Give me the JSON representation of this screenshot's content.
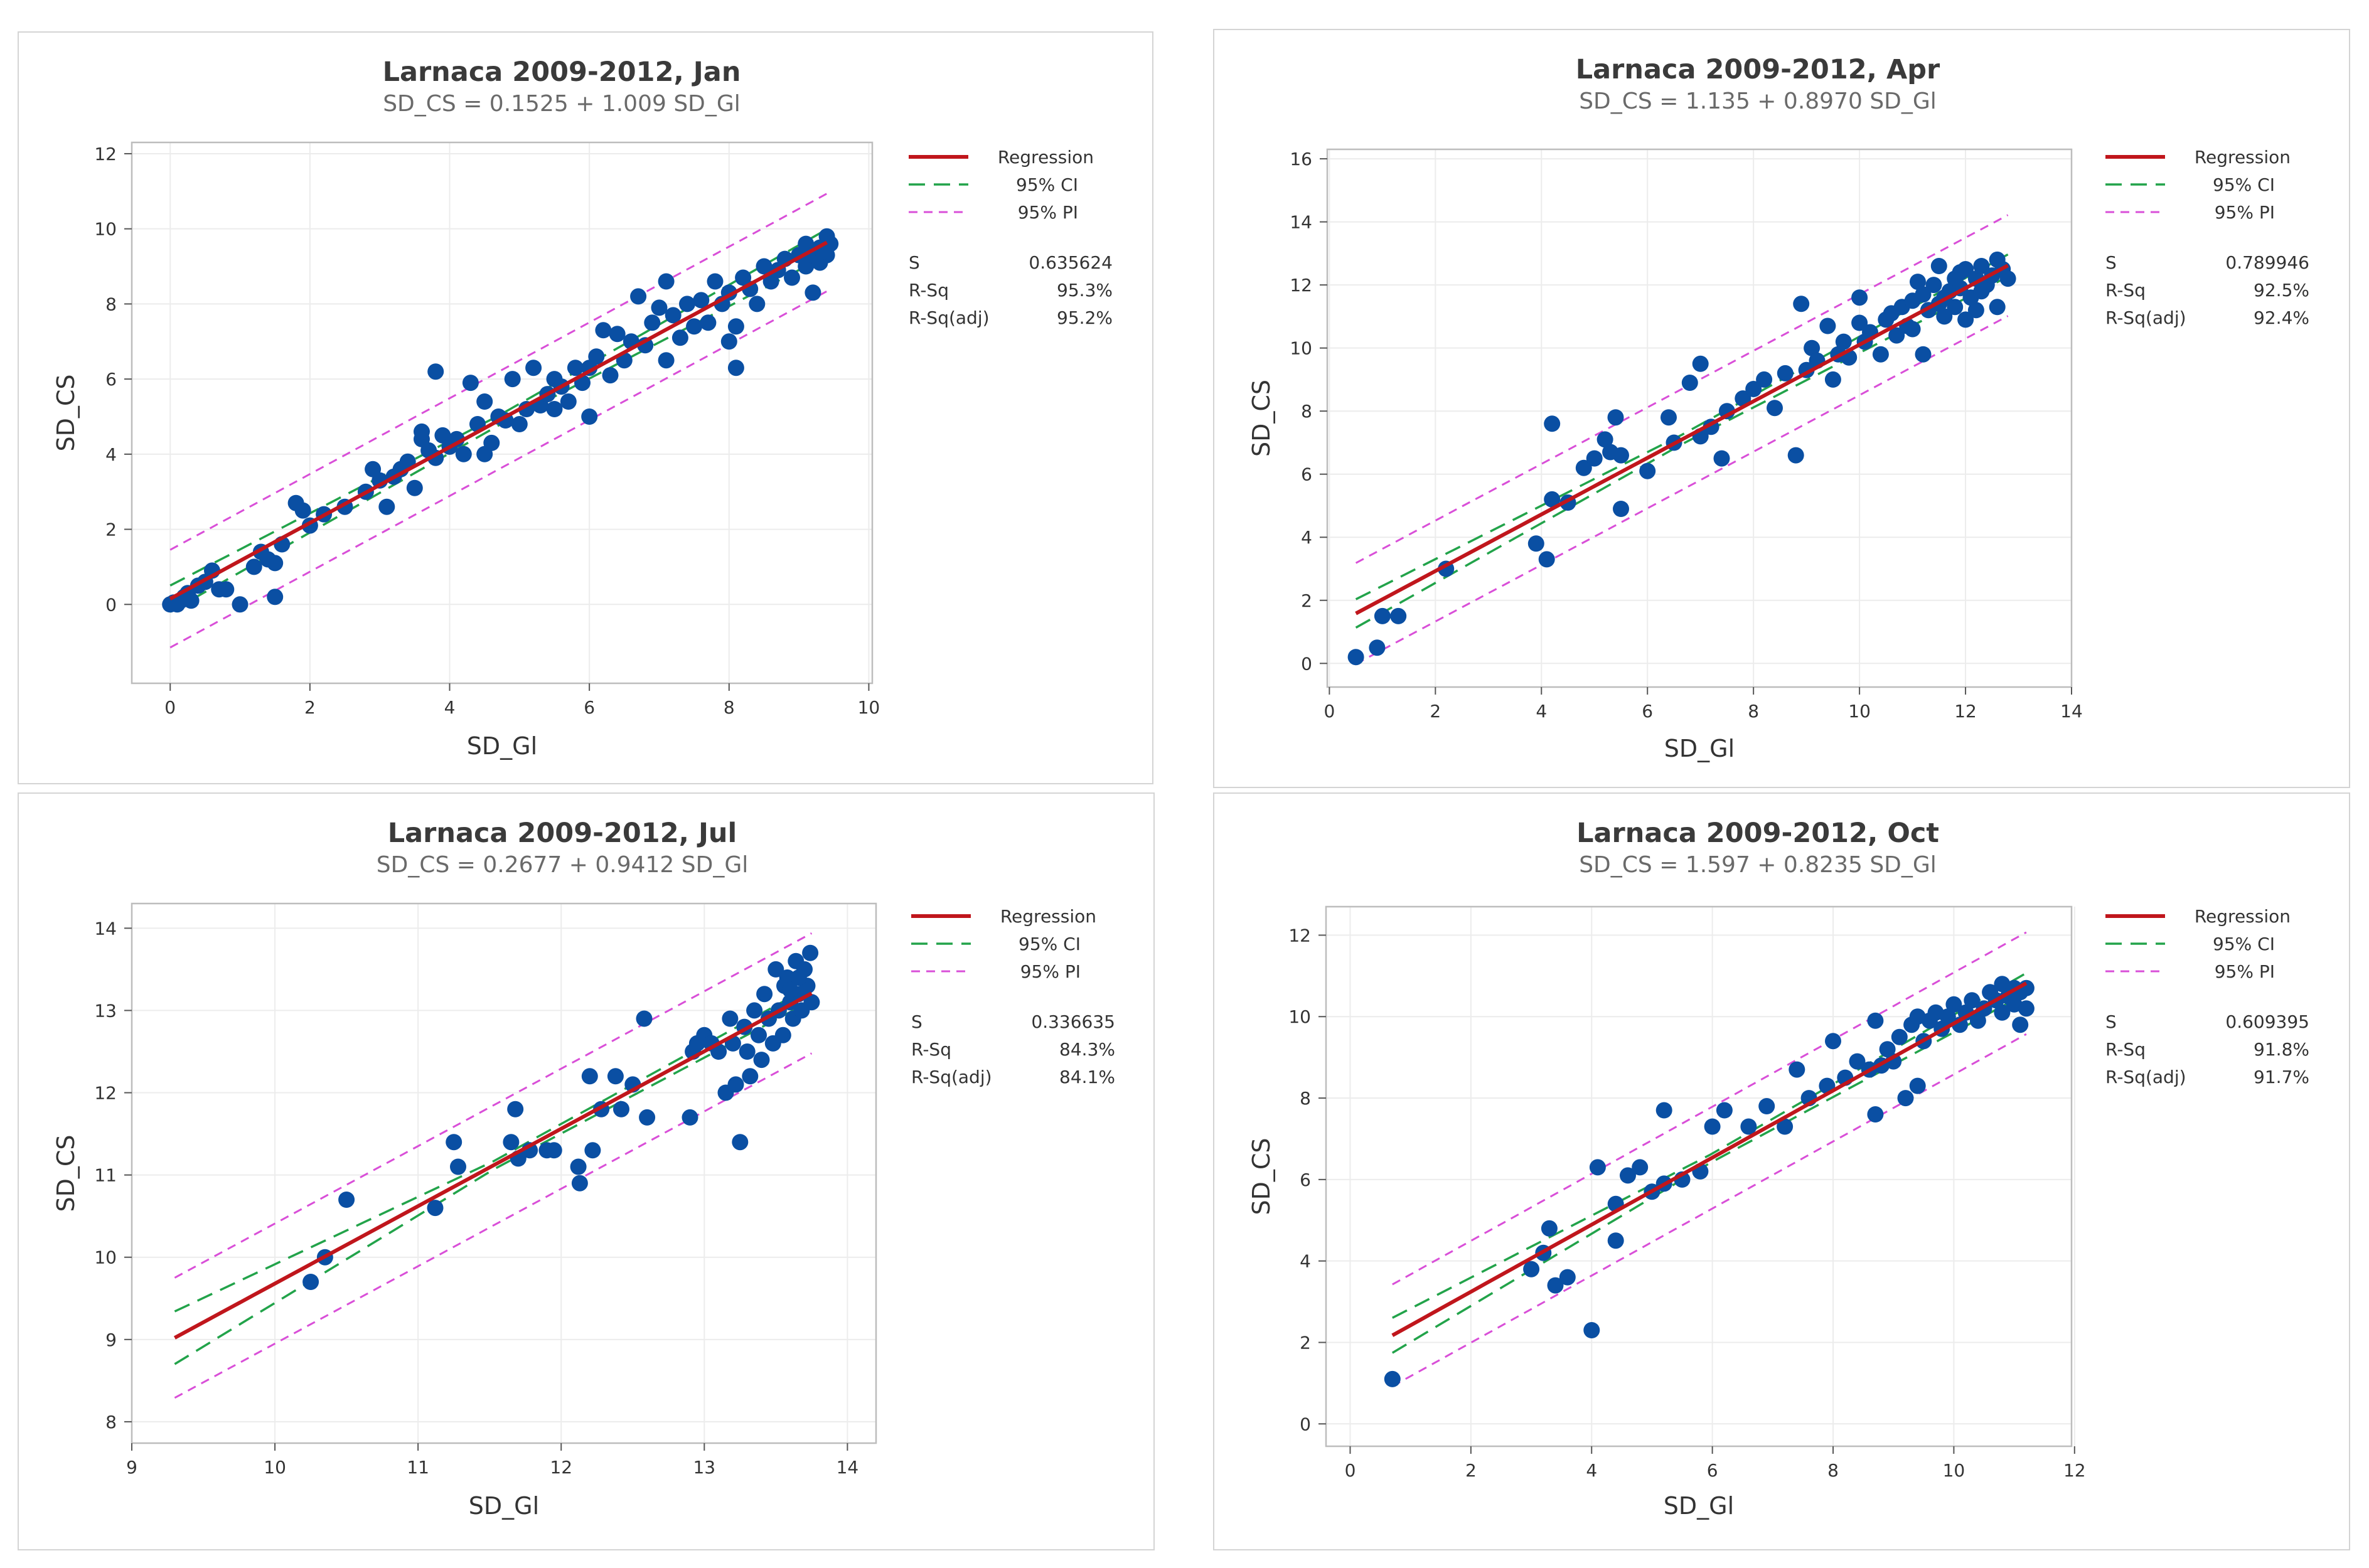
{
  "colors": {
    "regression": "#c0161c",
    "ci": "#22a34a",
    "pi": "#d94fd8",
    "points": "#0a4fa3",
    "grid": "#ececec",
    "frame": "#bdbdbd"
  },
  "chart_data": [
    {
      "type": "scatter",
      "title": "Larnaca 2009-2012, Jan",
      "subtitle": "SD_CS = 0.1525 + 1.009 SD_Gl",
      "xlabel": "SD_Gl",
      "ylabel": "SD_CS",
      "xlim": [
        -0.55,
        10.05
      ],
      "ylim": [
        -2.1,
        12.3
      ],
      "xticks": [
        0,
        2,
        4,
        6,
        8,
        10
      ],
      "yticks": [
        0,
        2,
        4,
        6,
        8,
        10,
        12
      ],
      "intercept": 0.1525,
      "slope": 1.009,
      "x_range": [
        0,
        9.4
      ],
      "ci_half": [
        0.35,
        0.13,
        0.35
      ],
      "pi_half": 1.3,
      "legend": {
        "regression": "Regression",
        "ci": "95% CI",
        "pi": "95% PI"
      },
      "stats": [
        {
          "label": "S",
          "value": "0.635624"
        },
        {
          "label": "R-Sq",
          "value": "95.3%"
        },
        {
          "label": "R-Sq(adj)",
          "value": "95.2%"
        }
      ],
      "points": [
        [
          0.0,
          0.0
        ],
        [
          0.05,
          0.05
        ],
        [
          0.1,
          0.0
        ],
        [
          0.15,
          0.1
        ],
        [
          0.2,
          0.2
        ],
        [
          0.25,
          0.3
        ],
        [
          0.3,
          0.1
        ],
        [
          0.4,
          0.5
        ],
        [
          0.5,
          0.6
        ],
        [
          0.6,
          0.9
        ],
        [
          0.7,
          0.4
        ],
        [
          0.8,
          0.4
        ],
        [
          1.0,
          0.0
        ],
        [
          1.2,
          1.0
        ],
        [
          1.3,
          1.4
        ],
        [
          1.4,
          1.2
        ],
        [
          1.5,
          1.1
        ],
        [
          1.5,
          0.2
        ],
        [
          1.6,
          1.6
        ],
        [
          1.8,
          2.7
        ],
        [
          1.9,
          2.5
        ],
        [
          2.0,
          2.1
        ],
        [
          2.2,
          2.4
        ],
        [
          2.5,
          2.6
        ],
        [
          2.8,
          3.0
        ],
        [
          2.9,
          3.6
        ],
        [
          3.0,
          3.3
        ],
        [
          3.1,
          2.6
        ],
        [
          3.2,
          3.4
        ],
        [
          3.3,
          3.6
        ],
        [
          3.4,
          3.8
        ],
        [
          3.5,
          3.1
        ],
        [
          3.6,
          4.4
        ],
        [
          3.6,
          4.6
        ],
        [
          3.7,
          4.1
        ],
        [
          3.8,
          3.9
        ],
        [
          3.8,
          6.2
        ],
        [
          3.9,
          4.5
        ],
        [
          4.0,
          4.2
        ],
        [
          4.1,
          4.4
        ],
        [
          4.2,
          4.0
        ],
        [
          4.3,
          5.9
        ],
        [
          4.4,
          4.8
        ],
        [
          4.5,
          4.0
        ],
        [
          4.5,
          5.4
        ],
        [
          4.6,
          4.3
        ],
        [
          4.7,
          5.0
        ],
        [
          4.8,
          4.9
        ],
        [
          4.9,
          6.0
        ],
        [
          5.0,
          4.8
        ],
        [
          5.1,
          5.2
        ],
        [
          5.2,
          6.3
        ],
        [
          5.3,
          5.3
        ],
        [
          5.4,
          5.6
        ],
        [
          5.5,
          6.0
        ],
        [
          5.5,
          5.2
        ],
        [
          5.6,
          5.8
        ],
        [
          5.7,
          5.4
        ],
        [
          5.8,
          6.3
        ],
        [
          5.9,
          5.9
        ],
        [
          6.0,
          5.0
        ],
        [
          6.0,
          6.3
        ],
        [
          6.1,
          6.6
        ],
        [
          6.2,
          7.3
        ],
        [
          6.3,
          6.1
        ],
        [
          6.4,
          7.2
        ],
        [
          6.5,
          6.5
        ],
        [
          6.6,
          7.0
        ],
        [
          6.7,
          8.2
        ],
        [
          6.8,
          6.9
        ],
        [
          6.9,
          7.5
        ],
        [
          7.0,
          7.9
        ],
        [
          7.1,
          8.6
        ],
        [
          7.1,
          6.5
        ],
        [
          7.2,
          7.7
        ],
        [
          7.3,
          7.1
        ],
        [
          7.4,
          8.0
        ],
        [
          7.5,
          7.4
        ],
        [
          7.6,
          8.1
        ],
        [
          7.7,
          7.5
        ],
        [
          7.8,
          8.6
        ],
        [
          7.9,
          8.0
        ],
        [
          8.0,
          8.3
        ],
        [
          8.0,
          7.0
        ],
        [
          8.1,
          7.4
        ],
        [
          8.1,
          6.3
        ],
        [
          8.2,
          8.7
        ],
        [
          8.3,
          8.4
        ],
        [
          8.4,
          8.0
        ],
        [
          8.5,
          9.0
        ],
        [
          8.6,
          8.6
        ],
        [
          8.7,
          8.9
        ],
        [
          8.8,
          9.2
        ],
        [
          8.9,
          8.7
        ],
        [
          9.0,
          9.3
        ],
        [
          9.1,
          9.0
        ],
        [
          9.1,
          9.6
        ],
        [
          9.2,
          9.3
        ],
        [
          9.2,
          8.3
        ],
        [
          9.3,
          9.5
        ],
        [
          9.3,
          9.1
        ],
        [
          9.4,
          9.8
        ],
        [
          9.4,
          9.3
        ],
        [
          9.45,
          9.6
        ],
        [
          9.35,
          9.4
        ]
      ]
    },
    {
      "type": "scatter",
      "title": "Larnaca 2009-2012, Apr",
      "subtitle": "SD_CS = 1.135 + 0.8970 SD_Gl",
      "xlabel": "SD_Gl",
      "ylabel": "SD_CS",
      "xlim": [
        -0.04,
        14.0
      ],
      "ylim": [
        -0.75,
        16.3
      ],
      "xticks": [
        0,
        2,
        4,
        6,
        8,
        10,
        12,
        14
      ],
      "yticks": [
        0,
        2,
        4,
        6,
        8,
        10,
        12,
        14,
        16
      ],
      "intercept": 1.135,
      "slope": 0.897,
      "x_range": [
        0.5,
        12.8
      ],
      "ci_half": [
        0.45,
        0.15,
        0.35
      ],
      "pi_half": 1.6,
      "legend": {
        "regression": "Regression",
        "ci": "95% CI",
        "pi": "95% PI"
      },
      "stats": [
        {
          "label": "S",
          "value": "0.789946"
        },
        {
          "label": "R-Sq",
          "value": "92.5%"
        },
        {
          "label": "R-Sq(adj)",
          "value": "92.4%"
        }
      ],
      "points": [
        [
          0.5,
          0.2
        ],
        [
          0.9,
          0.5
        ],
        [
          1.0,
          1.5
        ],
        [
          1.3,
          1.5
        ],
        [
          2.2,
          3.0
        ],
        [
          3.9,
          3.8
        ],
        [
          4.1,
          3.3
        ],
        [
          4.2,
          5.2
        ],
        [
          4.2,
          7.6
        ],
        [
          4.5,
          5.1
        ],
        [
          4.8,
          6.2
        ],
        [
          5.0,
          6.5
        ],
        [
          5.2,
          7.1
        ],
        [
          5.3,
          6.7
        ],
        [
          5.4,
          7.8
        ],
        [
          5.5,
          6.6
        ],
        [
          5.5,
          4.9
        ],
        [
          6.0,
          6.1
        ],
        [
          6.4,
          7.8
        ],
        [
          6.5,
          7.0
        ],
        [
          6.8,
          8.9
        ],
        [
          7.0,
          9.5
        ],
        [
          7.0,
          7.2
        ],
        [
          7.2,
          7.5
        ],
        [
          7.4,
          6.5
        ],
        [
          7.5,
          8.0
        ],
        [
          7.8,
          8.4
        ],
        [
          8.0,
          8.7
        ],
        [
          8.2,
          9.0
        ],
        [
          8.4,
          8.1
        ],
        [
          8.6,
          9.2
        ],
        [
          8.8,
          6.6
        ],
        [
          8.9,
          11.4
        ],
        [
          9.0,
          9.3
        ],
        [
          9.1,
          10.0
        ],
        [
          9.2,
          9.6
        ],
        [
          9.4,
          10.7
        ],
        [
          9.5,
          9.0
        ],
        [
          9.6,
          9.8
        ],
        [
          9.7,
          10.2
        ],
        [
          9.8,
          9.7
        ],
        [
          10.0,
          11.6
        ],
        [
          10.0,
          10.8
        ],
        [
          10.1,
          10.2
        ],
        [
          10.2,
          10.5
        ],
        [
          10.4,
          9.8
        ],
        [
          10.5,
          10.9
        ],
        [
          10.6,
          11.1
        ],
        [
          10.7,
          10.4
        ],
        [
          10.8,
          11.3
        ],
        [
          10.9,
          10.7
        ],
        [
          11.0,
          11.5
        ],
        [
          11.0,
          10.6
        ],
        [
          11.1,
          12.1
        ],
        [
          11.2,
          9.8
        ],
        [
          11.2,
          11.7
        ],
        [
          11.3,
          11.2
        ],
        [
          11.4,
          12.0
        ],
        [
          11.5,
          11.4
        ],
        [
          11.5,
          12.6
        ],
        [
          11.6,
          11.0
        ],
        [
          11.7,
          11.8
        ],
        [
          11.8,
          12.2
        ],
        [
          11.8,
          11.3
        ],
        [
          11.9,
          11.9
        ],
        [
          12.0,
          12.5
        ],
        [
          12.0,
          10.9
        ],
        [
          12.1,
          11.6
        ],
        [
          12.2,
          12.2
        ],
        [
          12.2,
          11.2
        ],
        [
          12.3,
          12.6
        ],
        [
          12.4,
          12.0
        ],
        [
          12.5,
          12.3
        ],
        [
          12.6,
          11.3
        ],
        [
          12.6,
          12.8
        ],
        [
          12.7,
          12.5
        ],
        [
          12.8,
          12.2
        ],
        [
          12.3,
          11.8
        ],
        [
          11.9,
          12.4
        ],
        [
          11.6,
          11.6
        ]
      ]
    },
    {
      "type": "scatter",
      "title": "Larnaca 2009-2012, Jul",
      "subtitle": "SD_CS = 0.2677 + 0.9412 SD_Gl",
      "xlabel": "SD_Gl",
      "ylabel": "SD_CS",
      "xlim": [
        9.0,
        14.2
      ],
      "ylim": [
        7.74,
        14.3
      ],
      "xticks": [
        9,
        10,
        11,
        12,
        13,
        14
      ],
      "yticks": [
        8,
        9,
        10,
        11,
        12,
        13,
        14
      ],
      "intercept": 0.2677,
      "slope": 0.9412,
      "x_range": [
        9.3,
        13.75
      ],
      "ci_half": [
        0.32,
        0.05,
        0.09
      ],
      "pi_half": 0.73,
      "legend": {
        "regression": "Regression",
        "ci": "95% CI",
        "pi": "95% PI"
      },
      "stats": [
        {
          "label": "S",
          "value": "0.336635"
        },
        {
          "label": "R-Sq",
          "value": "84.3%"
        },
        {
          "label": "R-Sq(adj)",
          "value": "84.1%"
        }
      ],
      "points": [
        [
          10.25,
          9.7
        ],
        [
          10.35,
          10.0
        ],
        [
          10.5,
          10.7
        ],
        [
          11.12,
          10.6
        ],
        [
          11.25,
          11.4
        ],
        [
          11.28,
          11.1
        ],
        [
          11.65,
          11.4
        ],
        [
          11.68,
          11.8
        ],
        [
          11.7,
          11.2
        ],
        [
          11.78,
          11.3
        ],
        [
          11.9,
          11.3
        ],
        [
          11.95,
          11.3
        ],
        [
          12.12,
          11.1
        ],
        [
          12.13,
          10.9
        ],
        [
          12.2,
          12.2
        ],
        [
          12.22,
          11.3
        ],
        [
          12.28,
          11.8
        ],
        [
          12.38,
          12.2
        ],
        [
          12.42,
          11.8
        ],
        [
          12.5,
          12.1
        ],
        [
          12.58,
          12.9
        ],
        [
          12.6,
          11.7
        ],
        [
          12.9,
          11.7
        ],
        [
          12.92,
          12.5
        ],
        [
          12.95,
          12.6
        ],
        [
          13.0,
          12.7
        ],
        [
          13.05,
          12.6
        ],
        [
          13.1,
          12.5
        ],
        [
          13.15,
          12.0
        ],
        [
          13.18,
          12.9
        ],
        [
          13.2,
          12.6
        ],
        [
          13.22,
          12.1
        ],
        [
          13.25,
          11.4
        ],
        [
          13.28,
          12.8
        ],
        [
          13.3,
          12.5
        ],
        [
          13.32,
          12.2
        ],
        [
          13.35,
          13.0
        ],
        [
          13.38,
          12.7
        ],
        [
          13.4,
          12.4
        ],
        [
          13.42,
          13.2
        ],
        [
          13.45,
          12.9
        ],
        [
          13.48,
          12.6
        ],
        [
          13.5,
          13.5
        ],
        [
          13.52,
          13.0
        ],
        [
          13.55,
          12.7
        ],
        [
          13.56,
          13.3
        ],
        [
          13.58,
          13.4
        ],
        [
          13.6,
          13.1
        ],
        [
          13.62,
          12.9
        ],
        [
          13.64,
          13.6
        ],
        [
          13.66,
          13.2
        ],
        [
          13.68,
          13.0
        ],
        [
          13.7,
          13.5
        ],
        [
          13.72,
          13.3
        ],
        [
          13.74,
          13.7
        ],
        [
          13.75,
          13.1
        ],
        [
          13.66,
          13.4
        ],
        [
          13.6,
          13.25
        ]
      ]
    },
    {
      "type": "scatter",
      "title": "Larnaca 2009-2012, Oct",
      "subtitle": "SD_CS = 1.597 + 0.8235 SD_Gl",
      "xlabel": "SD_Gl",
      "ylabel": "SD_CS",
      "xlim": [
        -0.4,
        11.95
      ],
      "ylim": [
        -0.55,
        12.7
      ],
      "xticks": [
        0,
        2,
        4,
        6,
        8,
        10,
        12
      ],
      "yticks": [
        0,
        2,
        4,
        6,
        8,
        10,
        12
      ],
      "intercept": 1.597,
      "slope": 0.8235,
      "x_range": [
        0.7,
        11.2
      ],
      "ci_half": [
        0.43,
        0.1,
        0.25
      ],
      "pi_half": 1.25,
      "legend": {
        "regression": "Regression",
        "ci": "95% CI",
        "pi": "95% PI"
      },
      "stats": [
        {
          "label": "S",
          "value": "0.609395"
        },
        {
          "label": "R-Sq",
          "value": "91.8%"
        },
        {
          "label": "R-Sq(adj)",
          "value": "91.7%"
        }
      ],
      "points": [
        [
          0.7,
          1.1
        ],
        [
          3.0,
          3.8
        ],
        [
          3.2,
          4.2
        ],
        [
          3.3,
          4.8
        ],
        [
          3.4,
          3.4
        ],
        [
          3.6,
          3.6
        ],
        [
          4.0,
          2.3
        ],
        [
          4.1,
          6.3
        ],
        [
          4.4,
          5.4
        ],
        [
          4.4,
          4.5
        ],
        [
          4.6,
          6.1
        ],
        [
          4.8,
          6.3
        ],
        [
          5.0,
          5.7
        ],
        [
          5.2,
          7.7
        ],
        [
          5.2,
          5.9
        ],
        [
          5.5,
          6.0
        ],
        [
          5.8,
          6.2
        ],
        [
          6.0,
          7.3
        ],
        [
          6.2,
          7.7
        ],
        [
          6.6,
          7.3
        ],
        [
          6.9,
          7.8
        ],
        [
          7.2,
          7.3
        ],
        [
          7.4,
          8.7
        ],
        [
          7.6,
          8.0
        ],
        [
          7.9,
          8.3
        ],
        [
          8.0,
          9.4
        ],
        [
          8.2,
          8.5
        ],
        [
          8.4,
          8.9
        ],
        [
          8.6,
          8.7
        ],
        [
          8.7,
          9.9
        ],
        [
          8.7,
          7.6
        ],
        [
          8.8,
          8.8
        ],
        [
          8.9,
          9.2
        ],
        [
          9.0,
          8.9
        ],
        [
          9.1,
          9.5
        ],
        [
          9.2,
          8.0
        ],
        [
          9.3,
          9.8
        ],
        [
          9.4,
          8.3
        ],
        [
          9.4,
          10.0
        ],
        [
          9.5,
          9.4
        ],
        [
          9.6,
          9.9
        ],
        [
          9.7,
          10.1
        ],
        [
          9.8,
          9.7
        ],
        [
          9.9,
          10.0
        ],
        [
          10.0,
          10.3
        ],
        [
          10.1,
          9.8
        ],
        [
          10.2,
          10.1
        ],
        [
          10.3,
          10.4
        ],
        [
          10.4,
          9.9
        ],
        [
          10.5,
          10.2
        ],
        [
          10.6,
          10.6
        ],
        [
          10.7,
          10.4
        ],
        [
          10.8,
          10.8
        ],
        [
          10.8,
          10.1
        ],
        [
          10.9,
          10.5
        ],
        [
          11.0,
          10.7
        ],
        [
          11.0,
          10.3
        ],
        [
          11.1,
          10.6
        ],
        [
          11.1,
          9.8
        ],
        [
          11.2,
          10.2
        ],
        [
          11.2,
          10.7
        ]
      ]
    }
  ]
}
